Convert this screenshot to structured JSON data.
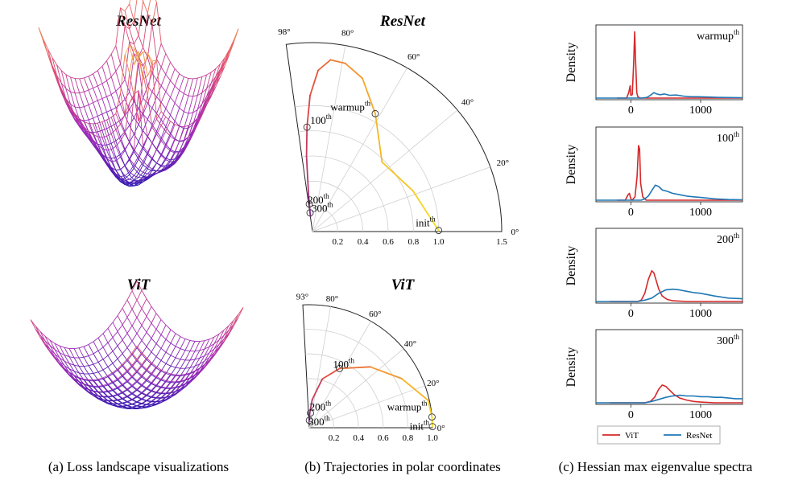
{
  "panels": {
    "a": {
      "caption": "(a) Loss landscape visualizations",
      "top_title": "ResNet",
      "bottom_title": "ViT"
    },
    "b": {
      "caption": "(b) Trajectories in polar coordinates",
      "top_title": "ResNet",
      "bottom_title": "ViT"
    },
    "c": {
      "caption": "(c) Hessian max eigenvalue spectra",
      "ylabel": "Density"
    }
  },
  "chart_data": [
    {
      "type": "surface",
      "panel": "a-top",
      "title": "ResNet",
      "colormap": [
        "#2a17b0",
        "#a62cb8",
        "#e3506a",
        "#f5c23a"
      ]
    },
    {
      "type": "surface",
      "panel": "a-bottom",
      "title": "ViT",
      "colormap": [
        "#2a17b0",
        "#a62cb8",
        "#e3506a"
      ]
    },
    {
      "type": "polar_line",
      "panel": "b-top",
      "title": "ResNet",
      "theta_max_deg": 98,
      "r_max": 1.5,
      "theta_ticks": [
        "0°",
        "20°",
        "40°",
        "60°",
        "80°",
        "98°"
      ],
      "r_ticks": [
        "0.2",
        "0.4",
        "0.6",
        "0.8",
        "1.0",
        "1.5"
      ],
      "points": [
        {
          "theta": 0.5,
          "r": 1.0
        },
        {
          "theta": 8,
          "r": 0.93
        },
        {
          "theta": 22,
          "r": 0.86
        },
        {
          "theta": 45,
          "r": 0.78
        },
        {
          "theta": 62,
          "r": 1.06
        },
        {
          "theta": 72,
          "r": 1.28
        },
        {
          "theta": 79,
          "r": 1.36
        },
        {
          "theta": 84,
          "r": 1.37
        },
        {
          "theta": 88,
          "r": 1.28
        },
        {
          "theta": 91,
          "r": 1.08
        },
        {
          "theta": 93,
          "r": 0.83
        },
        {
          "theta": 94.5,
          "r": 0.6
        },
        {
          "theta": 96,
          "r": 0.3
        },
        {
          "theta": 97,
          "r": 0.17
        },
        {
          "theta": 97.5,
          "r": 0.12
        }
      ],
      "markers": [
        {
          "label": "init",
          "sup": "th",
          "theta": 0.5,
          "r": 1.0
        },
        {
          "label": "warmup",
          "sup": "th",
          "theta": 62,
          "r": 1.06
        },
        {
          "label": "100",
          "sup": "th",
          "theta": 93,
          "r": 0.83
        },
        {
          "label": "200",
          "sup": "th",
          "theta": 96.5,
          "r": 0.22
        },
        {
          "label": "300",
          "sup": "th",
          "theta": 97.3,
          "r": 0.15
        }
      ],
      "colors": [
        "#f4e21e",
        "#f6a42a",
        "#e2433f",
        "#8a2f9a"
      ]
    },
    {
      "type": "polar_line",
      "panel": "b-bottom",
      "title": "ViT",
      "theta_max_deg": 93,
      "r_max": 1.0,
      "theta_ticks": [
        "0°",
        "20°",
        "40°",
        "60°",
        "80°",
        "93°"
      ],
      "r_ticks": [
        "0.2",
        "0.4",
        "0.6",
        "0.8",
        "1.0"
      ],
      "points": [
        {
          "theta": 0.5,
          "r": 1.0
        },
        {
          "theta": 5,
          "r": 1.0
        },
        {
          "theta": 13,
          "r": 0.99
        },
        {
          "theta": 28,
          "r": 0.85
        },
        {
          "theta": 45,
          "r": 0.7
        },
        {
          "theta": 63,
          "r": 0.54
        },
        {
          "theta": 75,
          "r": 0.41
        },
        {
          "theta": 84,
          "r": 0.23
        },
        {
          "theta": 88,
          "r": 0.12
        },
        {
          "theta": 91,
          "r": 0.05
        }
      ],
      "markers": [
        {
          "label": "init",
          "sup": "th",
          "theta": 0.5,
          "r": 1.0
        },
        {
          "label": "warmup",
          "sup": "th",
          "theta": 5,
          "r": 1.0
        },
        {
          "label": "100",
          "sup": "th",
          "theta": 63,
          "r": 0.54
        },
        {
          "label": "200",
          "sup": "th",
          "theta": 85,
          "r": 0.12
        },
        {
          "label": "300",
          "sup": "th",
          "theta": 89,
          "r": 0.06
        }
      ],
      "colors": [
        "#f4e21e",
        "#f6a42a",
        "#e2433f",
        "#8a2f9a"
      ]
    },
    {
      "type": "line",
      "panel": "c",
      "ylabel": "Density",
      "x_ticks": [
        0,
        1000
      ],
      "xlim": [
        -500,
        1600
      ],
      "series_names": [
        "ViT",
        "ResNet"
      ],
      "series_colors": [
        "#d62728",
        "#1f77b4"
      ],
      "legend": [
        "ViT",
        "ResNet"
      ],
      "subplots": [
        {
          "label": "warmup",
          "sup": "th",
          "ViT": [
            [
              -200,
              0
            ],
            [
              -60,
              0
            ],
            [
              -30,
              0.08
            ],
            [
              -10,
              0.18
            ],
            [
              0,
              0.04
            ],
            [
              20,
              0.05
            ],
            [
              40,
              0.5
            ],
            [
              55,
              0.97
            ],
            [
              70,
              0.5
            ],
            [
              85,
              0.08
            ],
            [
              100,
              0.02
            ],
            [
              130,
              0
            ],
            [
              1600,
              0
            ]
          ],
          "ResNet": [
            [
              -500,
              0
            ],
            [
              150,
              0
            ],
            [
              230,
              0.01
            ],
            [
              280,
              0.04
            ],
            [
              330,
              0.08
            ],
            [
              370,
              0.06
            ],
            [
              420,
              0.05
            ],
            [
              480,
              0.06
            ],
            [
              560,
              0.04
            ],
            [
              650,
              0.045
            ],
            [
              750,
              0.03
            ],
            [
              850,
              0.02
            ],
            [
              950,
              0.02
            ],
            [
              1100,
              0.015
            ],
            [
              1300,
              0.01
            ],
            [
              1600,
              0.005
            ]
          ]
        },
        {
          "label": "100",
          "sup": "th",
          "ViT": [
            [
              -200,
              0
            ],
            [
              -80,
              0
            ],
            [
              -40,
              0.08
            ],
            [
              -20,
              0.1
            ],
            [
              0,
              0.02
            ],
            [
              20,
              0
            ],
            [
              60,
              0.05
            ],
            [
              90,
              0.35
            ],
            [
              110,
              0.8
            ],
            [
              125,
              0.75
            ],
            [
              140,
              0.25
            ],
            [
              170,
              0.05
            ],
            [
              220,
              0
            ],
            [
              1600,
              0
            ]
          ],
          "ResNet": [
            [
              -500,
              0
            ],
            [
              150,
              0
            ],
            [
              200,
              0.02
            ],
            [
              250,
              0.06
            ],
            [
              300,
              0.14
            ],
            [
              350,
              0.22
            ],
            [
              400,
              0.2
            ],
            [
              450,
              0.15
            ],
            [
              520,
              0.13
            ],
            [
              600,
              0.1
            ],
            [
              700,
              0.08
            ],
            [
              800,
              0.06
            ],
            [
              900,
              0.05
            ],
            [
              1000,
              0.04
            ],
            [
              1200,
              0.02
            ],
            [
              1400,
              0.01
            ],
            [
              1600,
              0.005
            ]
          ]
        },
        {
          "label": "200",
          "sup": "th",
          "ViT": [
            [
              -300,
              0
            ],
            [
              100,
              0
            ],
            [
              150,
              0.02
            ],
            [
              200,
              0.12
            ],
            [
              250,
              0.32
            ],
            [
              300,
              0.45
            ],
            [
              330,
              0.42
            ],
            [
              360,
              0.32
            ],
            [
              400,
              0.18
            ],
            [
              450,
              0.08
            ],
            [
              520,
              0.03
            ],
            [
              600,
              0.01
            ],
            [
              800,
              0
            ],
            [
              1600,
              0
            ]
          ],
          "ResNet": [
            [
              -500,
              0
            ],
            [
              100,
              0
            ],
            [
              200,
              0.02
            ],
            [
              300,
              0.05
            ],
            [
              400,
              0.12
            ],
            [
              500,
              0.17
            ],
            [
              600,
              0.18
            ],
            [
              700,
              0.17
            ],
            [
              800,
              0.15
            ],
            [
              900,
              0.13
            ],
            [
              1000,
              0.12
            ],
            [
              1200,
              0.08
            ],
            [
              1400,
              0.05
            ],
            [
              1600,
              0.04
            ]
          ]
        },
        {
          "label": "300",
          "sup": "th",
          "ViT": [
            [
              -300,
              0
            ],
            [
              200,
              0
            ],
            [
              280,
              0.02
            ],
            [
              340,
              0.08
            ],
            [
              400,
              0.2
            ],
            [
              450,
              0.26
            ],
            [
              500,
              0.24
            ],
            [
              560,
              0.18
            ],
            [
              620,
              0.12
            ],
            [
              700,
              0.07
            ],
            [
              800,
              0.04
            ],
            [
              900,
              0.02
            ],
            [
              1000,
              0.01
            ],
            [
              1200,
              0
            ],
            [
              1600,
              0
            ]
          ],
          "ResNet": [
            [
              -500,
              0
            ],
            [
              200,
              0
            ],
            [
              300,
              0.02
            ],
            [
              400,
              0.05
            ],
            [
              500,
              0.08
            ],
            [
              600,
              0.1
            ],
            [
              700,
              0.11
            ],
            [
              800,
              0.1
            ],
            [
              900,
              0.1
            ],
            [
              1000,
              0.09
            ],
            [
              1100,
              0.09
            ],
            [
              1200,
              0.08
            ],
            [
              1300,
              0.08
            ],
            [
              1400,
              0.07
            ],
            [
              1500,
              0.06
            ],
            [
              1600,
              0.06
            ]
          ]
        }
      ]
    }
  ]
}
